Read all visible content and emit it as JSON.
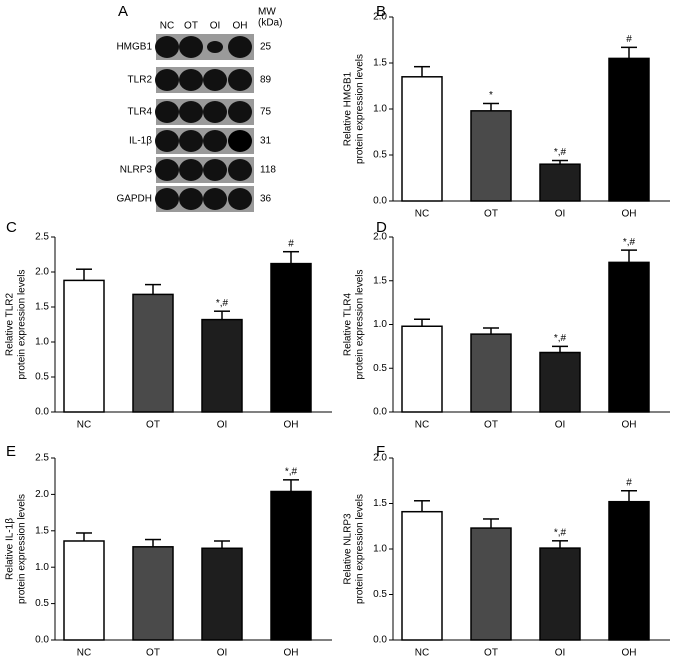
{
  "blot": {
    "panel": "A",
    "lanes": [
      "NC",
      "OT",
      "OI",
      "OH"
    ],
    "mw_header": [
      "MW",
      "(kDa)"
    ],
    "rows": [
      {
        "protein": "HMGB1",
        "mw": "25"
      },
      {
        "protein": "TLR2",
        "mw": "89"
      },
      {
        "protein": "TLR4",
        "mw": "75"
      },
      {
        "protein": "IL-1β",
        "mw": "31"
      },
      {
        "protein": "NLRP3",
        "mw": "118"
      },
      {
        "protein": "GAPDH",
        "mw": "36"
      }
    ]
  },
  "chart_data": [
    {
      "type": "bar",
      "panel": "B",
      "ylabel": [
        "Relative HMGB1",
        "protein expression levels"
      ],
      "categories": [
        "NC",
        "OT",
        "OI",
        "OH"
      ],
      "values": [
        1.35,
        0.98,
        0.4,
        1.55
      ],
      "errors": [
        0.11,
        0.08,
        0.04,
        0.12
      ],
      "annotations": [
        null,
        "*",
        "*,#",
        "#"
      ],
      "colors": [
        "#ffffff",
        "#4a4a4a",
        "#1e1e1e",
        "#000000"
      ],
      "ylim": [
        0,
        2
      ],
      "yticks": [
        {
          "value": 0,
          "label": "0.0"
        },
        0.5,
        {
          "value": 1,
          "label": "1.0"
        },
        1.5,
        {
          "value": 2,
          "label": "2.0"
        }
      ]
    },
    {
      "type": "bar",
      "panel": "C",
      "ylabel": [
        "Relative TLR2",
        "protein expression levels"
      ],
      "categories": [
        "NC",
        "OT",
        "OI",
        "OH"
      ],
      "values": [
        1.88,
        1.68,
        1.32,
        2.12
      ],
      "errors": [
        0.16,
        0.14,
        0.12,
        0.17
      ],
      "annotations": [
        null,
        null,
        "*,#",
        "#"
      ],
      "colors": [
        "#ffffff",
        "#4a4a4a",
        "#1e1e1e",
        "#000000"
      ],
      "ylim": [
        0,
        2.5
      ],
      "yticks": [
        {
          "value": 0,
          "label": "0.0"
        },
        0.5,
        {
          "value": 1,
          "label": "1.0"
        },
        1.5,
        {
          "value": 2,
          "label": "2.0"
        },
        2.5
      ]
    },
    {
      "type": "bar",
      "panel": "D",
      "ylabel": [
        "Relative TLR4",
        "protein expression levels"
      ],
      "categories": [
        "NC",
        "OT",
        "OI",
        "OH"
      ],
      "values": [
        0.98,
        0.89,
        0.68,
        1.71
      ],
      "errors": [
        0.08,
        0.07,
        0.07,
        0.14
      ],
      "annotations": [
        null,
        null,
        "*,#",
        "*,#"
      ],
      "colors": [
        "#ffffff",
        "#4a4a4a",
        "#1e1e1e",
        "#000000"
      ],
      "ylim": [
        0,
        2
      ],
      "yticks": [
        {
          "value": 0,
          "label": "0.0"
        },
        0.5,
        {
          "value": 1,
          "label": "1.0"
        },
        1.5,
        {
          "value": 2,
          "label": "2.0"
        }
      ]
    },
    {
      "type": "bar",
      "panel": "E",
      "ylabel": [
        "Relative IL-1β",
        "protein expression levels"
      ],
      "categories": [
        "NC",
        "OT",
        "OI",
        "OH"
      ],
      "values": [
        1.36,
        1.28,
        1.26,
        2.04
      ],
      "errors": [
        0.11,
        0.1,
        0.1,
        0.16
      ],
      "annotations": [
        null,
        null,
        null,
        "*,#"
      ],
      "colors": [
        "#ffffff",
        "#4a4a4a",
        "#1e1e1e",
        "#000000"
      ],
      "ylim": [
        0,
        2.5
      ],
      "yticks": [
        {
          "value": 0,
          "label": "0.0"
        },
        0.5,
        {
          "value": 1,
          "label": "1.0"
        },
        1.5,
        {
          "value": 2,
          "label": "2.0"
        },
        2.5
      ]
    },
    {
      "type": "bar",
      "panel": "F",
      "ylabel": [
        "Relative NLRP3",
        "protein expression levels"
      ],
      "categories": [
        "NC",
        "OT",
        "OI",
        "OH"
      ],
      "values": [
        1.41,
        1.23,
        1.01,
        1.52
      ],
      "errors": [
        0.12,
        0.1,
        0.08,
        0.12
      ],
      "annotations": [
        null,
        null,
        "*,#",
        "#"
      ],
      "colors": [
        "#ffffff",
        "#4a4a4a",
        "#1e1e1e",
        "#000000"
      ],
      "ylim": [
        0,
        2
      ],
      "yticks": [
        {
          "value": 0,
          "label": "0.0"
        },
        0.5,
        {
          "value": 1,
          "label": "1.0"
        },
        1.5,
        {
          "value": 2,
          "label": "2.0"
        }
      ]
    }
  ]
}
